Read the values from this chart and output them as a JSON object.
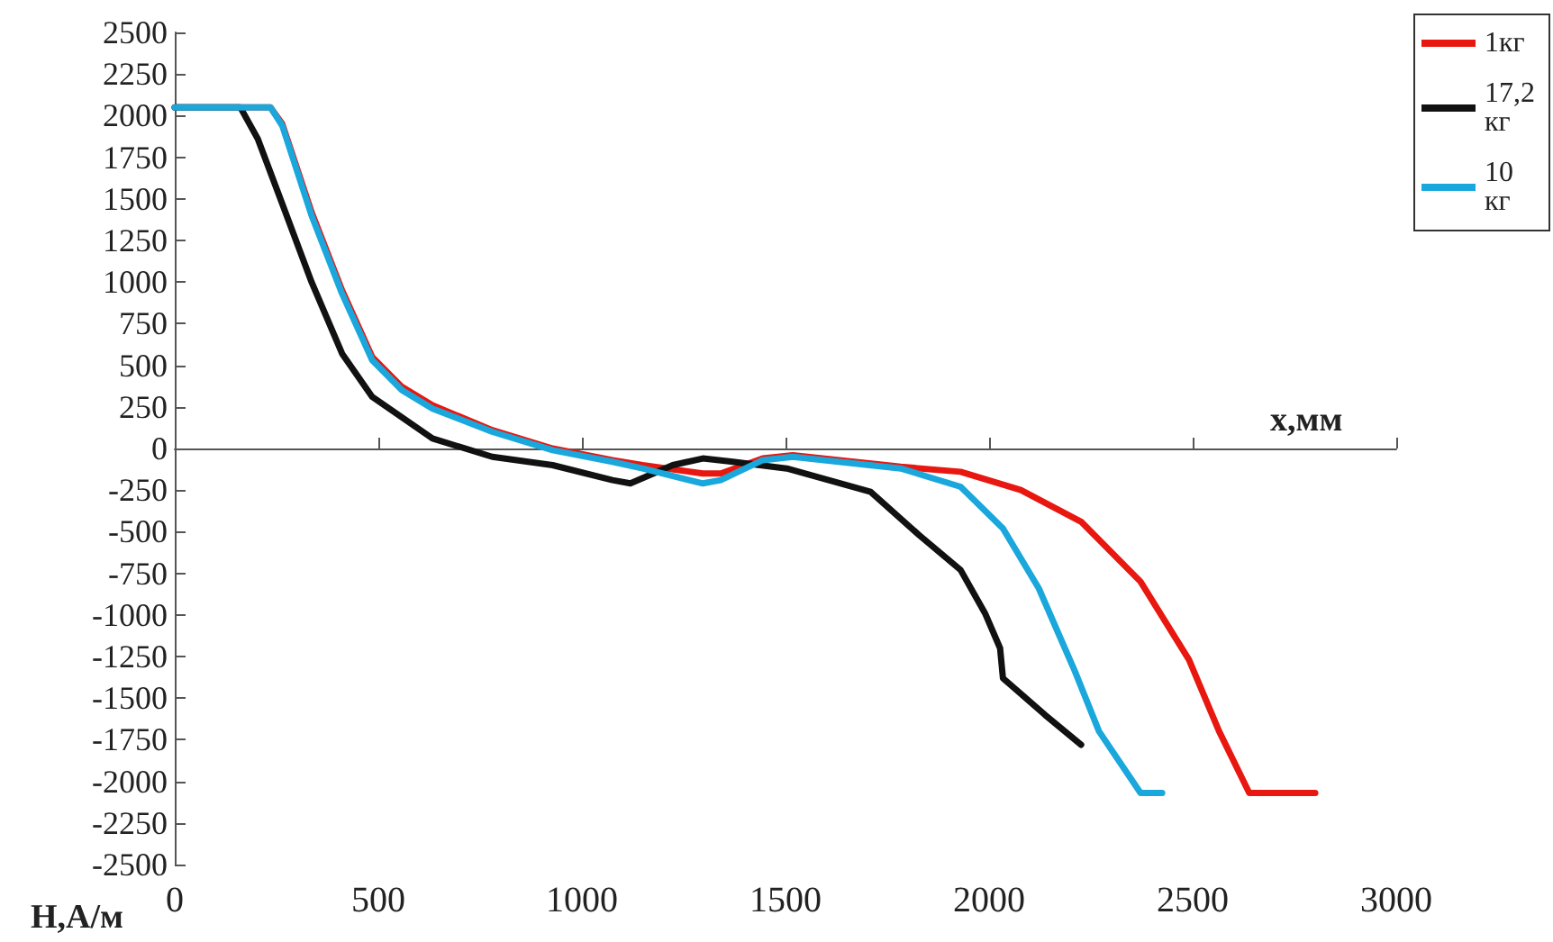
{
  "chart_data": {
    "type": "line",
    "xlabel": "x,мм",
    "ylabel": "H,А/м",
    "xlim": [
      0,
      3000
    ],
    "xticks": [
      0,
      500,
      1000,
      1500,
      2000,
      2500,
      3000
    ],
    "ylim": [
      -2500,
      2500
    ],
    "yticks": [
      -2500,
      -2250,
      -2000,
      -1750,
      -1500,
      -1250,
      -1000,
      -750,
      -500,
      -250,
      0,
      250,
      500,
      750,
      1000,
      1250,
      1500,
      1750,
      2000,
      2250,
      2500
    ],
    "legend": "top right",
    "line_style": "solid",
    "series": [
      {
        "name": "1кг",
        "color": "#e8170f",
        "x": [
          0,
          235,
          264,
          336,
          411,
          485,
          558,
          633,
          780,
          928,
          1075,
          1149,
          1297,
          1341,
          1444,
          1518,
          1783,
          1930,
          2078,
          2226,
          2372,
          2491,
          2565,
          2639,
          2801
        ],
        "values": [
          2050,
          2050,
          1950,
          1420,
          950,
          550,
          370,
          260,
          110,
          0,
          -70,
          -100,
          -150,
          -150,
          -60,
          -40,
          -110,
          -140,
          -250,
          -440,
          -800,
          -1270,
          -1700,
          -2070,
          -2070
        ]
      },
      {
        "name": "17,2 кг",
        "color": "#111111",
        "x": [
          0,
          161,
          204,
          264,
          336,
          411,
          485,
          633,
          780,
          928,
          1075,
          1119,
          1223,
          1297,
          1371,
          1503,
          1709,
          1828,
          1930,
          1990,
          2027,
          2034,
          2137,
          2226
        ],
        "values": [
          2050,
          2050,
          1860,
          1470,
          1000,
          570,
          310,
          60,
          -50,
          -100,
          -190,
          -210,
          -100,
          -60,
          -80,
          -120,
          -260,
          -520,
          -730,
          -990,
          -1200,
          -1380,
          -1600,
          -1780
        ]
      },
      {
        "name": "10 кг",
        "color": "#1aa7dc",
        "x": [
          0,
          235,
          264,
          336,
          411,
          485,
          558,
          633,
          780,
          928,
          1075,
          1149,
          1297,
          1341,
          1444,
          1518,
          1783,
          1930,
          2034,
          2122,
          2211,
          2270,
          2372,
          2425
        ],
        "values": [
          2050,
          2050,
          1940,
          1400,
          930,
          530,
          350,
          240,
          100,
          -10,
          -80,
          -120,
          -210,
          -190,
          -70,
          -50,
          -120,
          -230,
          -480,
          -840,
          -1340,
          -1700,
          -2070,
          -2070
        ]
      }
    ]
  }
}
